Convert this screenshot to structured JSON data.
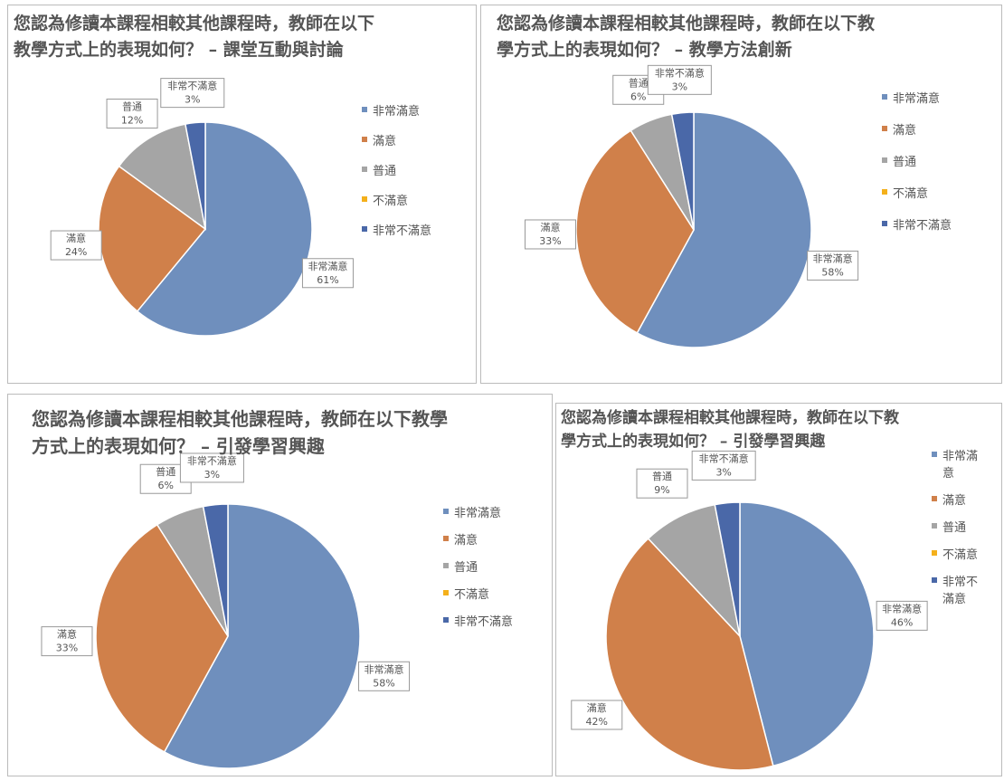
{
  "chart_data": [
    {
      "type": "pie",
      "title": "您認為修讀本課程相較其他課程時，教師在以下教學方式上的表現如何？ – 課堂互動與討論",
      "categories": [
        "非常滿意",
        "滿意",
        "普通",
        "不滿意",
        "非常不滿意"
      ],
      "values": [
        61,
        24,
        12,
        0,
        3
      ],
      "value_labels": [
        "61%",
        "24%",
        "12%",
        null,
        "3%"
      ],
      "colors": [
        "#6f8fbd",
        "#d0804a",
        "#a5a5a5",
        "#f4b01b",
        "#4a68a8"
      ]
    },
    {
      "type": "pie",
      "title": "您認為修讀本課程相較其他課程時，教師在以下教學方式上的表現如何？ – 教學方法創新",
      "categories": [
        "非常滿意",
        "滿意",
        "普通",
        "不滿意",
        "非常不滿意"
      ],
      "values": [
        58,
        33,
        6,
        0,
        3
      ],
      "value_labels": [
        "58%",
        "33%",
        "6%",
        null,
        "3%"
      ],
      "colors": [
        "#6f8fbd",
        "#d0804a",
        "#a5a5a5",
        "#f4b01b",
        "#4a68a8"
      ]
    },
    {
      "type": "pie",
      "title": "您認為修讀本課程相較其他課程時，教師在以下教學方式上的表現如何？ – 引發學習興趣",
      "categories": [
        "非常滿意",
        "滿意",
        "普通",
        "不滿意",
        "非常不滿意"
      ],
      "values": [
        58,
        33,
        6,
        0,
        3
      ],
      "value_labels": [
        "58%",
        "33%",
        "6%",
        null,
        "3%"
      ],
      "colors": [
        "#6f8fbd",
        "#d0804a",
        "#a5a5a5",
        "#f4b01b",
        "#4a68a8"
      ]
    },
    {
      "type": "pie",
      "title": "您認為修讀本課程相較其他課程時，教師在以下教學方式上的表現如何？ – 引發學習興趣",
      "categories": [
        "非常滿意",
        "滿意",
        "普通",
        "不滿意",
        "非常不滿意"
      ],
      "values": [
        46,
        42,
        9,
        0,
        3
      ],
      "value_labels": [
        "46%",
        "42%",
        "9%",
        null,
        "3%"
      ],
      "colors": [
        "#6f8fbd",
        "#d0804a",
        "#a5a5a5",
        "#f4b01b",
        "#4a68a8"
      ]
    }
  ]
}
